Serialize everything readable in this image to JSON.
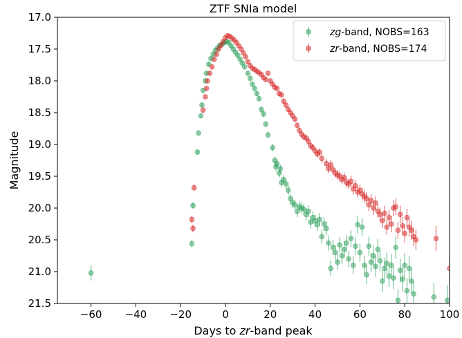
{
  "chart_data": {
    "type": "scatter",
    "title": "ZTF SNIa model",
    "xlabel": {
      "pre": "Days to ",
      "em": "zr",
      "post": "-band peak"
    },
    "ylabel": "Magnitude",
    "xlim": [
      -75,
      100
    ],
    "ylim": [
      21.5,
      17.0
    ],
    "y_inverted": true,
    "xticks": [
      -60,
      -40,
      -20,
      0,
      20,
      40,
      60,
      80,
      100
    ],
    "yticks": [
      17.0,
      17.5,
      18.0,
      18.5,
      19.0,
      19.5,
      20.0,
      20.5,
      21.0,
      21.5
    ],
    "xtick_labels": [
      "−60",
      "−40",
      "−20",
      "0",
      "20",
      "40",
      "60",
      "80",
      "100"
    ],
    "ytick_labels": [
      "17.0",
      "17.5",
      "18.0",
      "18.5",
      "19.0",
      "19.5",
      "20.0",
      "20.5",
      "21.0",
      "21.5"
    ],
    "grid": false,
    "legend_position": "top-right",
    "series": [
      {
        "name": "zg-band, NOBS=163",
        "legend": {
          "em": "zg",
          "rest": "-band, NOBS=163"
        },
        "color": "#2ca05a",
        "points": [
          [
            -60,
            21.02,
            0.12
          ],
          [
            -15,
            20.56,
            0.06
          ],
          [
            -14.5,
            19.96,
            0.05
          ],
          [
            -12.5,
            19.12,
            0.04
          ],
          [
            -12,
            18.82,
            0.04
          ],
          [
            -11,
            18.55,
            0.03
          ],
          [
            -10.5,
            18.38,
            0.03
          ],
          [
            -10,
            18.15,
            0.03
          ],
          [
            -9,
            18.0,
            0.03
          ],
          [
            -8.5,
            17.88,
            0.03
          ],
          [
            -7.5,
            17.74,
            0.03
          ],
          [
            -6.5,
            17.65,
            0.03
          ],
          [
            -5.5,
            17.58,
            0.03
          ],
          [
            -4.5,
            17.52,
            0.03
          ],
          [
            -3.5,
            17.48,
            0.03
          ],
          [
            -2.5,
            17.44,
            0.03
          ],
          [
            -1.5,
            17.42,
            0.03
          ],
          [
            -0.5,
            17.4,
            0.03
          ],
          [
            0.5,
            17.38,
            0.03
          ],
          [
            1.5,
            17.4,
            0.03
          ],
          [
            2.5,
            17.45,
            0.03
          ],
          [
            3.5,
            17.5,
            0.03
          ],
          [
            4.5,
            17.55,
            0.03
          ],
          [
            5.5,
            17.6,
            0.03
          ],
          [
            6.5,
            17.66,
            0.03
          ],
          [
            7.5,
            17.72,
            0.03
          ],
          [
            8.5,
            17.78,
            0.03
          ],
          [
            10,
            17.88,
            0.03
          ],
          [
            11,
            17.96,
            0.03
          ],
          [
            12,
            18.05,
            0.04
          ],
          [
            13,
            18.12,
            0.04
          ],
          [
            14,
            18.2,
            0.04
          ],
          [
            15,
            18.28,
            0.04
          ],
          [
            16,
            18.45,
            0.05
          ],
          [
            17,
            18.52,
            0.05
          ],
          [
            18,
            18.68,
            0.05
          ],
          [
            19,
            18.85,
            0.05
          ],
          [
            21,
            19.05,
            0.06
          ],
          [
            22,
            19.25,
            0.06
          ],
          [
            22.5,
            19.35,
            0.07
          ],
          [
            23,
            19.3,
            0.07
          ],
          [
            24,
            19.45,
            0.07
          ],
          [
            24.5,
            19.38,
            0.07
          ],
          [
            25,
            19.6,
            0.07
          ],
          [
            26,
            19.55,
            0.07
          ],
          [
            27,
            19.62,
            0.08
          ],
          [
            28,
            19.72,
            0.08
          ],
          [
            29,
            19.85,
            0.08
          ],
          [
            30,
            19.92,
            0.08
          ],
          [
            31,
            19.95,
            0.08
          ],
          [
            32,
            20.05,
            0.09
          ],
          [
            33,
            19.98,
            0.09
          ],
          [
            34,
            20.0,
            0.09
          ],
          [
            35,
            20.02,
            0.09
          ],
          [
            36,
            20.1,
            0.1
          ],
          [
            37,
            20.05,
            0.1
          ],
          [
            38,
            20.22,
            0.1
          ],
          [
            39,
            20.15,
            0.1
          ],
          [
            40,
            20.2,
            0.1
          ],
          [
            41,
            20.26,
            0.1
          ],
          [
            42,
            20.18,
            0.1
          ],
          [
            43,
            20.45,
            0.11
          ],
          [
            44,
            20.25,
            0.11
          ],
          [
            45,
            20.32,
            0.11
          ],
          [
            46,
            20.55,
            0.12
          ],
          [
            47,
            20.95,
            0.12
          ],
          [
            48,
            20.62,
            0.12
          ],
          [
            49,
            20.7,
            0.12
          ],
          [
            50,
            20.85,
            0.12
          ],
          [
            51,
            20.58,
            0.12
          ],
          [
            52,
            20.75,
            0.13
          ],
          [
            53,
            20.65,
            0.13
          ],
          [
            54,
            20.55,
            0.13
          ],
          [
            55,
            20.8,
            0.13
          ],
          [
            56,
            20.48,
            0.13
          ],
          [
            57,
            20.9,
            0.14
          ],
          [
            58,
            20.6,
            0.14
          ],
          [
            59,
            20.26,
            0.14
          ],
          [
            60,
            20.7,
            0.14
          ],
          [
            61,
            20.3,
            0.14
          ],
          [
            62,
            20.9,
            0.15
          ],
          [
            63,
            21.05,
            0.15
          ],
          [
            64,
            20.6,
            0.15
          ],
          [
            65,
            20.85,
            0.15
          ],
          [
            66,
            20.75,
            0.16
          ],
          [
            67,
            20.92,
            0.16
          ],
          [
            68,
            20.65,
            0.16
          ],
          [
            69,
            20.83,
            0.16
          ],
          [
            70,
            21.15,
            0.17
          ],
          [
            71,
            20.95,
            0.17
          ],
          [
            72,
            20.87,
            0.17
          ],
          [
            73,
            21.07,
            0.17
          ],
          [
            74,
            20.9,
            0.18
          ],
          [
            75,
            21.1,
            0.18
          ],
          [
            76,
            20.62,
            0.18
          ],
          [
            77,
            21.45,
            0.18
          ],
          [
            78,
            20.98,
            0.19
          ],
          [
            79,
            21.12,
            0.19
          ],
          [
            80,
            20.9,
            0.19
          ],
          [
            81,
            21.3,
            0.2
          ],
          [
            82,
            20.95,
            0.2
          ],
          [
            83,
            21.15,
            0.2
          ],
          [
            84,
            21.35,
            0.2
          ],
          [
            93,
            21.4,
            0.22
          ],
          [
            99,
            21.45,
            0.24
          ]
        ]
      },
      {
        "name": "zr-band, NOBS=174",
        "legend": {
          "em": "zr",
          "rest": "-band, NOBS=174"
        },
        "color": "#d62728",
        "points": [
          [
            -15,
            20.18,
            0.06
          ],
          [
            -14.5,
            20.32,
            0.06
          ],
          [
            -14,
            19.68,
            0.05
          ],
          [
            -10,
            18.46,
            0.04
          ],
          [
            -9,
            18.25,
            0.03
          ],
          [
            -8.5,
            18.12,
            0.03
          ],
          [
            -8,
            18.0,
            0.03
          ],
          [
            -7,
            17.88,
            0.03
          ],
          [
            -6,
            17.78,
            0.03
          ],
          [
            -5,
            17.66,
            0.03
          ],
          [
            -4,
            17.58,
            0.03
          ],
          [
            -3,
            17.5,
            0.03
          ],
          [
            -2,
            17.44,
            0.03
          ],
          [
            -1,
            17.38,
            0.03
          ],
          [
            0,
            17.32,
            0.03
          ],
          [
            1,
            17.29,
            0.03
          ],
          [
            2,
            17.3,
            0.03
          ],
          [
            3,
            17.33,
            0.03
          ],
          [
            4,
            17.36,
            0.03
          ],
          [
            5,
            17.4,
            0.03
          ],
          [
            6,
            17.45,
            0.03
          ],
          [
            7,
            17.5,
            0.03
          ],
          [
            8,
            17.56,
            0.03
          ],
          [
            9,
            17.62,
            0.03
          ],
          [
            10,
            17.7,
            0.03
          ],
          [
            11,
            17.76,
            0.03
          ],
          [
            12,
            17.8,
            0.03
          ],
          [
            13,
            17.82,
            0.03
          ],
          [
            14,
            17.85,
            0.03
          ],
          [
            15,
            17.87,
            0.03
          ],
          [
            16,
            17.9,
            0.03
          ],
          [
            17,
            17.95,
            0.03
          ],
          [
            18,
            17.98,
            0.03
          ],
          [
            19,
            17.88,
            0.03
          ],
          [
            20,
            18.0,
            0.03
          ],
          [
            21,
            18.05,
            0.04
          ],
          [
            22,
            18.1,
            0.04
          ],
          [
            23,
            18.12,
            0.04
          ],
          [
            24,
            18.2,
            0.04
          ],
          [
            25,
            18.22,
            0.04
          ],
          [
            26,
            18.32,
            0.04
          ],
          [
            27,
            18.38,
            0.04
          ],
          [
            28,
            18.45,
            0.04
          ],
          [
            29,
            18.5,
            0.05
          ],
          [
            30,
            18.55,
            0.05
          ],
          [
            31,
            18.6,
            0.05
          ],
          [
            32,
            18.7,
            0.05
          ],
          [
            33,
            18.78,
            0.05
          ],
          [
            34,
            18.84,
            0.05
          ],
          [
            35,
            18.88,
            0.05
          ],
          [
            36,
            18.9,
            0.05
          ],
          [
            37,
            18.95,
            0.06
          ],
          [
            38,
            19.02,
            0.06
          ],
          [
            39,
            19.05,
            0.06
          ],
          [
            40,
            19.1,
            0.06
          ],
          [
            41,
            19.15,
            0.06
          ],
          [
            42,
            19.12,
            0.06
          ],
          [
            43,
            19.22,
            0.07
          ],
          [
            45,
            19.3,
            0.07
          ],
          [
            46,
            19.38,
            0.07
          ],
          [
            47,
            19.32,
            0.07
          ],
          [
            48,
            19.4,
            0.07
          ],
          [
            49,
            19.45,
            0.07
          ],
          [
            50,
            19.48,
            0.08
          ],
          [
            51,
            19.5,
            0.08
          ],
          [
            52,
            19.55,
            0.08
          ],
          [
            53,
            19.52,
            0.08
          ],
          [
            54,
            19.6,
            0.08
          ],
          [
            55,
            19.62,
            0.08
          ],
          [
            56,
            19.58,
            0.09
          ],
          [
            57,
            19.7,
            0.09
          ],
          [
            58,
            19.65,
            0.09
          ],
          [
            59,
            19.75,
            0.09
          ],
          [
            60,
            19.72,
            0.09
          ],
          [
            61,
            19.78,
            0.1
          ],
          [
            62,
            19.82,
            0.1
          ],
          [
            63,
            19.85,
            0.1
          ],
          [
            64,
            19.95,
            0.1
          ],
          [
            65,
            19.88,
            0.1
          ],
          [
            66,
            20.0,
            0.11
          ],
          [
            67,
            19.92,
            0.11
          ],
          [
            68,
            20.05,
            0.11
          ],
          [
            69,
            20.1,
            0.11
          ],
          [
            70,
            20.2,
            0.12
          ],
          [
            71,
            20.08,
            0.12
          ],
          [
            72,
            20.3,
            0.12
          ],
          [
            73,
            20.15,
            0.12
          ],
          [
            74,
            20.25,
            0.13
          ],
          [
            75,
            20.0,
            0.13
          ],
          [
            76,
            19.98,
            0.13
          ],
          [
            77,
            20.35,
            0.13
          ],
          [
            78,
            20.1,
            0.14
          ],
          [
            79,
            20.28,
            0.14
          ],
          [
            80,
            20.4,
            0.14
          ],
          [
            81,
            20.15,
            0.14
          ],
          [
            82,
            20.3,
            0.15
          ],
          [
            83,
            20.35,
            0.15
          ],
          [
            84,
            20.45,
            0.15
          ],
          [
            85,
            20.5,
            0.16
          ],
          [
            94,
            20.48,
            0.2
          ],
          [
            100,
            20.95,
            0.24
          ]
        ]
      }
    ]
  }
}
